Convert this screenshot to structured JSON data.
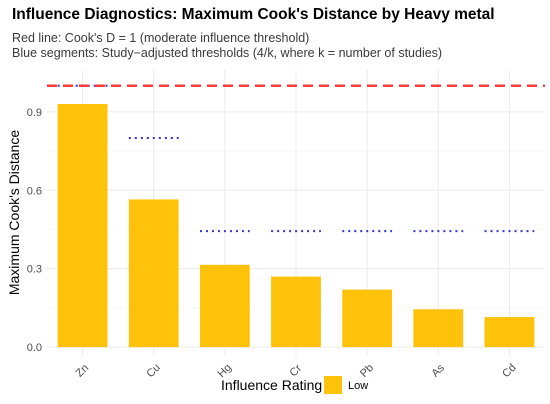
{
  "chart_data": {
    "type": "bar",
    "title": "Influence Diagnostics: Maximum Cook's Distance by Heavy metal",
    "subtitle_lines": [
      "Red line: Cook's D = 1 (moderate influence threshold)",
      "Blue segments: Study−adjusted thresholds (4/k, where k = number of studies)"
    ],
    "xlabel": "",
    "ylabel": "Maximum Cook's Distance",
    "categories": [
      "Zn",
      "Cu",
      "Hg",
      "Cr",
      "Pb",
      "As",
      "Cd"
    ],
    "values": [
      0.93,
      0.565,
      0.315,
      0.27,
      0.22,
      0.145,
      0.115
    ],
    "study_thresholds": [
      1.0,
      0.8,
      0.444,
      0.444,
      0.444,
      0.444,
      0.444
    ],
    "reference_line": 1.0,
    "ylim": [
      -0.03,
      1.06
    ],
    "yticks": [
      0.0,
      0.3,
      0.6,
      0.9
    ],
    "ytick_labels": [
      "0.0",
      "0.3",
      "0.6",
      "0.9"
    ],
    "grid": true,
    "legend": {
      "title": "Influence Rating",
      "placement": "bottom",
      "entries": [
        {
          "label": "Low",
          "color": "#FFC20A"
        }
      ]
    },
    "colors": {
      "bar": "#FFC20A",
      "reference_line": "#FF3B3B",
      "threshold_segment": "#3333CC",
      "grid": "#EBEBEB"
    }
  }
}
